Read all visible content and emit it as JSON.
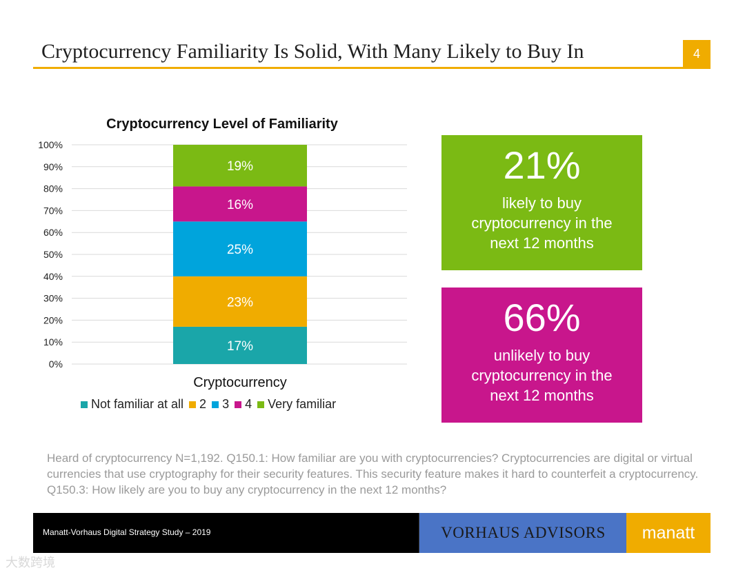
{
  "page": {
    "title": "Cryptocurrency Familiarity Is Solid, With Many Likely to Buy In",
    "page_number": "4"
  },
  "chart_data": {
    "type": "bar",
    "stacked": true,
    "title": "Cryptocurrency Level of Familiarity",
    "categories": [
      "Cryptocurrency"
    ],
    "xlabel": "Cryptocurrency",
    "ylabel": "",
    "ylim": [
      0,
      100
    ],
    "y_ticks": [
      "0%",
      "10%",
      "20%",
      "30%",
      "40%",
      "50%",
      "60%",
      "70%",
      "80%",
      "90%",
      "100%"
    ],
    "grid": true,
    "legend_position": "bottom",
    "series": [
      {
        "name": "Not familiar at all",
        "values": [
          17
        ],
        "label": "17%",
        "color": "#1aa6a9"
      },
      {
        "name": "2",
        "values": [
          23
        ],
        "label": "23%",
        "color": "#f0ac00"
      },
      {
        "name": "3",
        "values": [
          25
        ],
        "label": "25%",
        "color": "#00a4dc"
      },
      {
        "name": "4",
        "values": [
          16
        ],
        "label": "16%",
        "color": "#c8168c"
      },
      {
        "name": "Very familiar",
        "values": [
          19
        ],
        "label": "19%",
        "color": "#7bba14"
      }
    ]
  },
  "kpis": {
    "likely": {
      "value": "21%",
      "text": "likely to buy cryptocurrency in the next 12 months",
      "color": "#7bba14"
    },
    "unlikely": {
      "value": "66%",
      "text": "unlikely to buy cryptocurrency in the next 12 months",
      "color": "#c8168c"
    }
  },
  "footnote": "Heard of cryptocurrency N=1,192. Q150.1: How familiar are you with cryptocurrencies? Cryptocurrencies are digital or virtual currencies that use cryptography for their security features. This security feature makes it hard to counterfeit a cryptocurrency. Q150.3: How likely are you to buy any cryptocurrency in the next 12 months?",
  "footer": {
    "study": "Manatt-Vorhaus Digital Strategy Study – 2019",
    "logo_vorhaus": "VORHAUS ADVISORS",
    "logo_manatt": "manatt"
  },
  "watermark": "大数跨境"
}
